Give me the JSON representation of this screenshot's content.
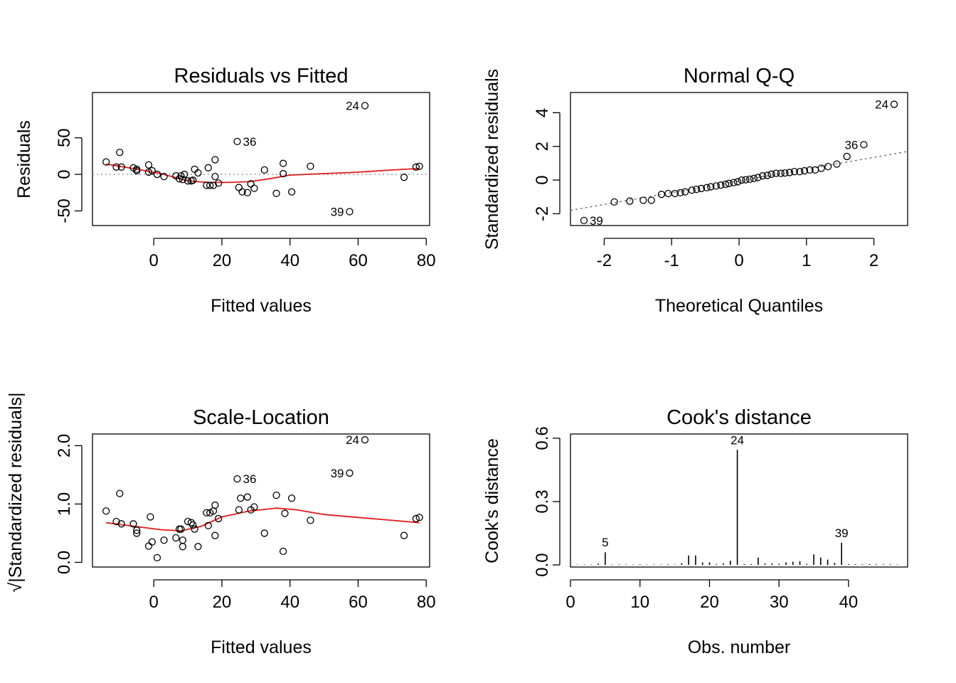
{
  "colors": {
    "smooth": "#e41a1c",
    "refline": "#999999",
    "points": "#000000"
  },
  "chart_data": [
    {
      "type": "scatter",
      "title": "Residuals vs Fitted",
      "xlabel": "Fitted values",
      "ylabel": "Residuals",
      "xlim": [
        -18,
        81
      ],
      "ylim": [
        -70,
        112
      ],
      "xticks": [
        0,
        20,
        40,
        60,
        80
      ],
      "xtick_labels": [
        "0",
        "20",
        "40",
        "60",
        "80"
      ],
      "yticks": [
        -50,
        0,
        50
      ],
      "ytick_labels": [
        "-50",
        "0",
        "50"
      ],
      "points": [
        [
          -14,
          17
        ],
        [
          -11,
          10
        ],
        [
          -10,
          30
        ],
        [
          -9.5,
          10
        ],
        [
          -6,
          9
        ],
        [
          -5,
          5
        ],
        [
          -5,
          7
        ],
        [
          -1.5,
          3
        ],
        [
          -1.5,
          13
        ],
        [
          -0.5,
          5
        ],
        [
          1,
          0
        ],
        [
          3,
          -3
        ],
        [
          6.5,
          -2
        ],
        [
          7.5,
          -6
        ],
        [
          8,
          -2
        ],
        [
          8.5,
          -7
        ],
        [
          9,
          0
        ],
        [
          10,
          -9
        ],
        [
          11,
          -9
        ],
        [
          11.5,
          -8
        ],
        [
          12,
          7
        ],
        [
          13,
          2
        ],
        [
          15.5,
          -15
        ],
        [
          16,
          9
        ],
        [
          16.5,
          -15
        ],
        [
          17.5,
          -15
        ],
        [
          18,
          20
        ],
        [
          18,
          -3
        ],
        [
          19,
          -12
        ],
        [
          24.5,
          45
        ],
        [
          25,
          -18
        ],
        [
          26,
          -24
        ],
        [
          27.5,
          -25
        ],
        [
          28.5,
          -13
        ],
        [
          29.5,
          -19
        ],
        [
          32.5,
          6
        ],
        [
          36,
          -26
        ],
        [
          38,
          15
        ],
        [
          38,
          1
        ],
        [
          40.5,
          -24
        ],
        [
          46,
          11
        ],
        [
          57.5,
          -51
        ],
        [
          62,
          94
        ],
        [
          73.5,
          -4
        ],
        [
          77,
          10
        ],
        [
          78,
          11
        ]
      ],
      "smooth": [
        [
          -14,
          14
        ],
        [
          -6,
          8
        ],
        [
          2,
          1
        ],
        [
          10,
          -9
        ],
        [
          16,
          -11
        ],
        [
          22,
          -11
        ],
        [
          28,
          -10
        ],
        [
          34,
          -6
        ],
        [
          40,
          -1
        ],
        [
          50,
          1
        ],
        [
          60,
          3
        ],
        [
          70,
          6
        ],
        [
          78,
          8
        ]
      ],
      "hline": 0,
      "labels": [
        {
          "text": "24",
          "x": 62,
          "y": 94
        },
        {
          "text": "36",
          "x": 24.5,
          "y": 45
        },
        {
          "text": "39",
          "x": 57.5,
          "y": -51
        }
      ]
    },
    {
      "type": "scatter",
      "title": "Normal Q-Q",
      "xlabel": "Theoretical Quantiles",
      "ylabel": "Standardized residuals",
      "xlim": [
        -2.5,
        2.5
      ],
      "ylim": [
        -2.7,
        5.2
      ],
      "xticks": [
        -2,
        -1,
        0,
        1,
        2
      ],
      "xtick_labels": [
        "-2",
        "-1",
        "0",
        "1",
        "2"
      ],
      "yticks": [
        -2,
        0,
        2,
        4
      ],
      "ytick_labels": [
        "-2",
        "0",
        "2",
        "4"
      ],
      "points": [
        [
          -2.3,
          -2.4
        ],
        [
          -1.85,
          -1.3
        ],
        [
          -1.62,
          -1.25
        ],
        [
          -1.42,
          -1.2
        ],
        [
          -1.3,
          -1.2
        ],
        [
          -1.15,
          -0.85
        ],
        [
          -1.05,
          -0.8
        ],
        [
          -0.95,
          -0.8
        ],
        [
          -0.87,
          -0.75
        ],
        [
          -0.8,
          -0.7
        ],
        [
          -0.7,
          -0.6
        ],
        [
          -0.63,
          -0.55
        ],
        [
          -0.56,
          -0.5
        ],
        [
          -0.48,
          -0.45
        ],
        [
          -0.42,
          -0.4
        ],
        [
          -0.34,
          -0.35
        ],
        [
          -0.27,
          -0.3
        ],
        [
          -0.2,
          -0.25
        ],
        [
          -0.15,
          -0.2
        ],
        [
          -0.08,
          -0.15
        ],
        [
          -0.02,
          -0.1
        ],
        [
          0.04,
          0
        ],
        [
          0.1,
          0.02
        ],
        [
          0.16,
          0.05
        ],
        [
          0.22,
          0.1
        ],
        [
          0.28,
          0.15
        ],
        [
          0.35,
          0.25
        ],
        [
          0.42,
          0.28
        ],
        [
          0.48,
          0.35
        ],
        [
          0.55,
          0.4
        ],
        [
          0.62,
          0.4
        ],
        [
          0.68,
          0.42
        ],
        [
          0.75,
          0.45
        ],
        [
          0.82,
          0.5
        ],
        [
          0.9,
          0.5
        ],
        [
          0.97,
          0.55
        ],
        [
          1.05,
          0.6
        ],
        [
          1.13,
          0.6
        ],
        [
          1.22,
          0.7
        ],
        [
          1.32,
          0.8
        ],
        [
          1.45,
          0.95
        ],
        [
          1.6,
          1.4
        ],
        [
          1.85,
          2.1
        ],
        [
          2.3,
          4.5
        ]
      ],
      "refline": [
        [
          -2.5,
          -1.8
        ],
        [
          2.5,
          1.7
        ]
      ],
      "labels": [
        {
          "text": "24",
          "x": 2.3,
          "y": 4.5
        },
        {
          "text": "36",
          "x": 1.85,
          "y": 2.1
        },
        {
          "text": "39",
          "x": -2.3,
          "y": -2.4
        }
      ]
    },
    {
      "type": "scatter",
      "title": "Scale-Location",
      "xlabel": "Fitted values",
      "ylabel": "√|Standardized residuals|",
      "xlim": [
        -18,
        81
      ],
      "ylim": [
        -0.08,
        2.2
      ],
      "xticks": [
        0,
        20,
        40,
        60,
        80
      ],
      "xtick_labels": [
        "0",
        "20",
        "40",
        "60",
        "80"
      ],
      "yticks": [
        0.0,
        1.0,
        2.0
      ],
      "ytick_labels": [
        "0.0",
        "1.0",
        "2.0"
      ],
      "points": [
        [
          -14,
          0.88
        ],
        [
          -11,
          0.7
        ],
        [
          -10,
          1.18
        ],
        [
          -9.5,
          0.66
        ],
        [
          -6,
          0.66
        ],
        [
          -5,
          0.5
        ],
        [
          -5,
          0.55
        ],
        [
          -1.5,
          0.28
        ],
        [
          -1,
          0.78
        ],
        [
          -0.5,
          0.35
        ],
        [
          1,
          0.08
        ],
        [
          3,
          0.38
        ],
        [
          6.5,
          0.42
        ],
        [
          7.5,
          0.57
        ],
        [
          8,
          0.57
        ],
        [
          8.5,
          0.27
        ],
        [
          8.5,
          0.38
        ],
        [
          10,
          0.7
        ],
        [
          11,
          0.68
        ],
        [
          11.5,
          0.64
        ],
        [
          12,
          0.57
        ],
        [
          13,
          0.27
        ],
        [
          15.5,
          0.85
        ],
        [
          16,
          0.63
        ],
        [
          16.5,
          0.85
        ],
        [
          17.5,
          0.88
        ],
        [
          18,
          0.98
        ],
        [
          18,
          0.46
        ],
        [
          19,
          0.75
        ],
        [
          24.5,
          1.43
        ],
        [
          25,
          0.9
        ],
        [
          25.5,
          1.1
        ],
        [
          27.5,
          1.12
        ],
        [
          28.5,
          0.9
        ],
        [
          29.5,
          0.95
        ],
        [
          32.5,
          0.5
        ],
        [
          36,
          1.15
        ],
        [
          38,
          0.19
        ],
        [
          38.5,
          0.84
        ],
        [
          40.5,
          1.1
        ],
        [
          46,
          0.72
        ],
        [
          57.5,
          1.53
        ],
        [
          62,
          2.1
        ],
        [
          73.5,
          0.46
        ],
        [
          77,
          0.75
        ],
        [
          78,
          0.77
        ]
      ],
      "smooth": [
        [
          -14,
          0.68
        ],
        [
          -6,
          0.62
        ],
        [
          2,
          0.56
        ],
        [
          8,
          0.54
        ],
        [
          14,
          0.62
        ],
        [
          20,
          0.78
        ],
        [
          28,
          0.88
        ],
        [
          36,
          0.93
        ],
        [
          42,
          0.9
        ],
        [
          50,
          0.82
        ],
        [
          60,
          0.77
        ],
        [
          70,
          0.72
        ],
        [
          78,
          0.68
        ]
      ],
      "labels": [
        {
          "text": "24",
          "x": 62,
          "y": 2.1
        },
        {
          "text": "36",
          "x": 24.5,
          "y": 1.43
        },
        {
          "text": "39",
          "x": 57.5,
          "y": 1.53
        }
      ]
    },
    {
      "type": "bar",
      "title": "Cook's distance",
      "xlabel": "Obs. number",
      "ylabel": "Cook's distance",
      "xlim": [
        0,
        48.5
      ],
      "ylim": [
        -0.01,
        0.62
      ],
      "xticks": [
        0,
        10,
        20,
        30,
        40
      ],
      "xtick_labels": [
        "0",
        "10",
        "20",
        "30",
        "40"
      ],
      "yticks": [
        0.0,
        0.3,
        0.6
      ],
      "ytick_labels": [
        "0.0",
        "0.3",
        "0.6"
      ],
      "x": [
        1,
        2,
        3,
        4,
        5,
        6,
        7,
        8,
        9,
        10,
        11,
        12,
        13,
        14,
        15,
        16,
        17,
        18,
        19,
        20,
        21,
        22,
        23,
        24,
        25,
        26,
        27,
        28,
        29,
        30,
        31,
        32,
        33,
        34,
        35,
        36,
        37,
        38,
        39,
        40,
        41,
        42,
        43,
        44,
        45,
        46,
        47
      ],
      "values": [
        0.002,
        0.002,
        0.002,
        0.006,
        0.06,
        0.002,
        0.003,
        0.002,
        0.002,
        0.003,
        0.002,
        0.002,
        0.002,
        0.003,
        0.002,
        0.008,
        0.045,
        0.045,
        0.012,
        0.012,
        0.004,
        0.007,
        0.02,
        0.545,
        0.004,
        0.004,
        0.035,
        0.006,
        0.007,
        0.005,
        0.012,
        0.015,
        0.018,
        0.005,
        0.05,
        0.035,
        0.025,
        0.01,
        0.105,
        0.004,
        0.003,
        0.003,
        0.004,
        0.003,
        0.003,
        0.003,
        0.002
      ],
      "labels": [
        {
          "text": "24",
          "x": 24,
          "y": 0.545
        },
        {
          "text": "39",
          "x": 39,
          "y": 0.105
        },
        {
          "text": "5",
          "x": 5,
          "y": 0.06
        }
      ]
    }
  ]
}
